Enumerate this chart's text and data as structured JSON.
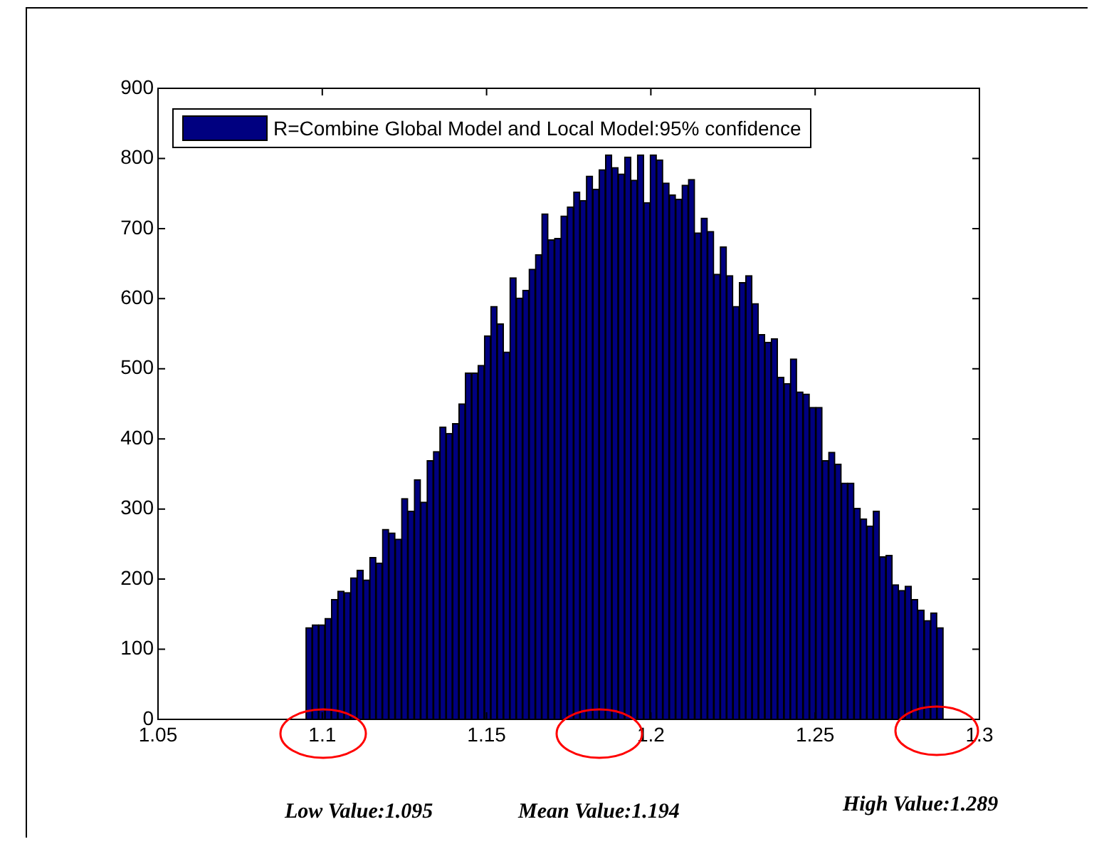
{
  "chart_data": {
    "type": "histogram",
    "bins": [
      1.095,
      1.09694,
      1.09888,
      1.10082,
      1.10276,
      1.1047,
      1.10664,
      1.10858,
      1.11052,
      1.11246,
      1.1144,
      1.11634,
      1.11828,
      1.12022,
      1.12216,
      1.1241,
      1.12604,
      1.12798,
      1.12992,
      1.13186,
      1.1338,
      1.13574,
      1.13768,
      1.13962,
      1.14156,
      1.1435,
      1.14544,
      1.14738,
      1.14932,
      1.15126,
      1.1532,
      1.15514,
      1.15708,
      1.15902,
      1.16096,
      1.1629,
      1.16484,
      1.16678,
      1.16872,
      1.17066,
      1.1726,
      1.17454,
      1.17648,
      1.17842,
      1.18036,
      1.1823,
      1.18424,
      1.18618,
      1.18812,
      1.19006,
      1.192,
      1.19394,
      1.19588,
      1.19782,
      1.19976,
      1.2017,
      1.20364,
      1.20558,
      1.20752,
      1.20946,
      1.2114,
      1.21334,
      1.21528,
      1.21722,
      1.21916,
      1.2211,
      1.22304,
      1.22498,
      1.22692,
      1.22886,
      1.2308,
      1.23274,
      1.23468,
      1.23662,
      1.23856,
      1.2405,
      1.24244,
      1.24438,
      1.24632,
      1.24826,
      1.2502,
      1.25214,
      1.25408,
      1.25602,
      1.25796,
      1.2599,
      1.26184,
      1.26378,
      1.26572,
      1.26766,
      1.2696,
      1.27154,
      1.27348,
      1.27542,
      1.27736,
      1.2793,
      1.28124,
      1.28318,
      1.28512,
      1.28706,
      1.289
    ],
    "series": [
      {
        "name": "R=Combine Global Model and Local Model:95% confidence",
        "color": "#000080",
        "values": [
          131,
          135,
          135,
          144,
          171,
          183,
          181,
          202,
          213,
          199,
          231,
          223,
          271,
          266,
          257,
          315,
          297,
          342,
          310,
          369,
          382,
          417,
          408,
          422,
          450,
          494,
          494,
          505,
          547,
          589,
          564,
          524,
          630,
          601,
          612,
          642,
          663,
          721,
          684,
          686,
          718,
          731,
          752,
          740,
          775,
          756,
          784,
          805,
          787,
          778,
          802,
          769,
          805,
          737,
          805,
          798,
          765,
          748,
          742,
          762,
          770,
          694,
          715,
          696,
          635,
          674,
          633,
          589,
          623,
          633,
          593,
          549,
          538,
          543,
          488,
          479,
          514,
          467,
          464,
          445,
          445,
          369,
          381,
          364,
          337,
          337,
          301,
          286,
          276,
          297,
          232,
          234,
          192,
          184,
          190,
          171,
          156,
          141,
          152,
          131
        ]
      }
    ],
    "xlim": [
      1.05,
      1.3
    ],
    "xticks": [
      1.05,
      1.1,
      1.15,
      1.2,
      1.25,
      1.3
    ],
    "ylim": [
      0,
      900
    ],
    "yticks": [
      0,
      100,
      200,
      300,
      400,
      500,
      600,
      700,
      800,
      900
    ],
    "legend": "top left",
    "annotations": [
      "Low Value:1.095",
      "Mean Value:1.194",
      "High Value:1.289"
    ]
  }
}
